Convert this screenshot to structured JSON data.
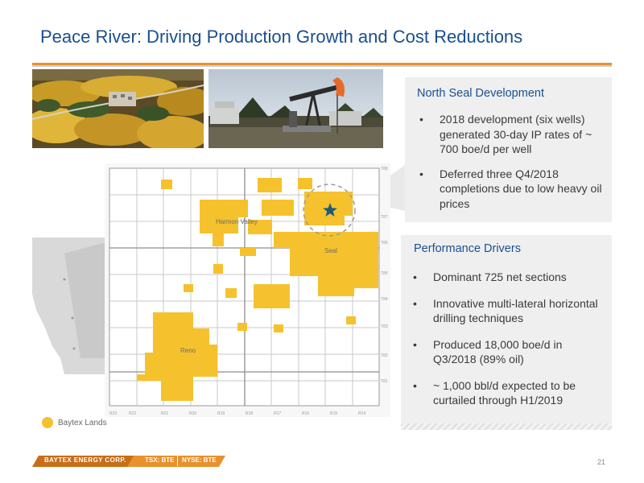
{
  "slide": {
    "title": "Peace River: Driving Production Growth and Cost Reductions",
    "page_number": "21"
  },
  "colors": {
    "title": "#1a4f8f",
    "accent_orange": "#e8912d",
    "lands_yellow": "#f5c22e",
    "panel_grey": "#efefef"
  },
  "north_seal": {
    "heading": "North Seal Development",
    "bullets": [
      "2018 development (six wells) generated 30-day IP rates of ~ 700 boe/d per well",
      "Deferred three Q4/2018 completions due to low heavy oil prices"
    ]
  },
  "performance": {
    "heading": "Performance Drivers",
    "bullets": [
      "Dominant 725 net sections",
      "Innovative multi-lateral horizontal drilling techniques",
      "Produced 18,000 boe/d in Q3/2018  (89% oil)",
      "~ 1,000 bbl/d expected to be curtailed through H1/2019"
    ]
  },
  "map": {
    "labels": {
      "harmon_valley": "Harmon Valley",
      "seal": "Seal",
      "reno": "Reno"
    },
    "legend": "Baytex Lands"
  },
  "footer": {
    "company": "BAYTEX ENERGY CORP.",
    "tsx": "TSX: BTE",
    "nyse": "NYSE: BTE"
  },
  "photos": [
    "forest-aerial-photo",
    "pumpjack-photo"
  ]
}
